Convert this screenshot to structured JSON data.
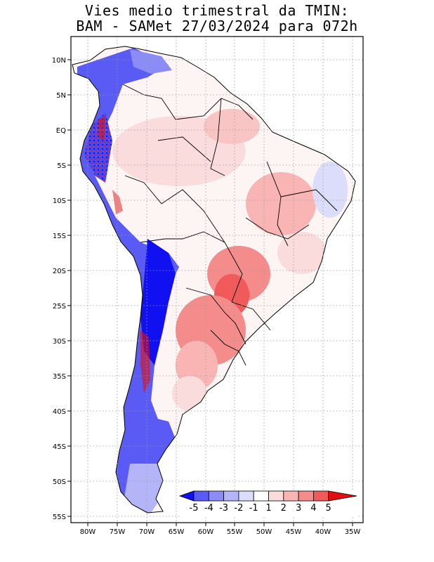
{
  "title": {
    "line1": "Vies medio trimestral da TMIN:",
    "line2": "BAM - SAMet 27/03/2024  para 072h"
  },
  "map": {
    "lat_labels": [
      "10N",
      "5N",
      "EQ",
      "5S",
      "10S",
      "15S",
      "20S",
      "25S",
      "30S",
      "35S",
      "40S",
      "45S",
      "50S",
      "55S"
    ],
    "lon_labels": [
      "80W",
      "75W",
      "70W",
      "65W",
      "60W",
      "55W",
      "50W",
      "45W",
      "40W",
      "35W"
    ],
    "grid": true,
    "grid_style": "dotted"
  },
  "colorbar": {
    "labels": [
      "-5",
      "-4",
      "-3",
      "-2",
      "-1",
      "1",
      "2",
      "3",
      "4",
      "5"
    ],
    "colors": [
      "#1010f0",
      "#5a5af5",
      "#8c8cf7",
      "#b4b4f9",
      "#dcdcfb",
      "#ffffff",
      "#fbdcdc",
      "#f9b4b4",
      "#f58c8c",
      "#f05a5a",
      "#e01010"
    ]
  }
}
